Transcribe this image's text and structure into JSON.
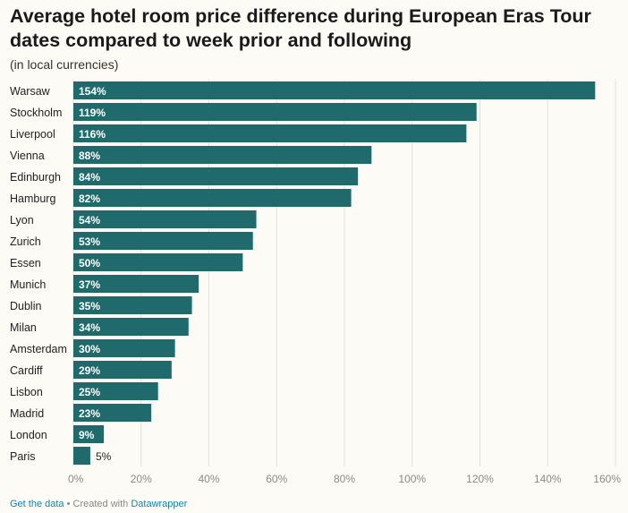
{
  "header": {
    "title": "Average hotel room price difference during European Eras Tour dates compared to week prior and following",
    "subtitle": "(in local currencies)"
  },
  "footer": {
    "get_data_label": "Get the data",
    "separator": " • Created with ",
    "tool_label": "Datawrapper"
  },
  "colors": {
    "bar": "#1f6b6b",
    "grid": "#e2e0dc",
    "tick": "#8a8a8a",
    "label_inside": "#ffffff",
    "label_outside": "#222222",
    "background": "#fdfbf6"
  },
  "chart_data": {
    "type": "bar",
    "orientation": "horizontal",
    "title": "Average hotel room price difference during European Eras Tour dates compared to week prior and following",
    "subtitle": "(in local currencies)",
    "xlabel": "",
    "ylabel": "",
    "xlim": [
      0,
      160
    ],
    "xticks": [
      0,
      20,
      40,
      60,
      80,
      100,
      120,
      140,
      160
    ],
    "xtick_labels": [
      "0%",
      "20%",
      "40%",
      "60%",
      "80%",
      "100%",
      "120%",
      "140%",
      "160%"
    ],
    "grid": true,
    "categories": [
      "Warsaw",
      "Stockholm",
      "Liverpool",
      "Vienna",
      "Edinburgh",
      "Hamburg",
      "Lyon",
      "Zurich",
      "Essen",
      "Munich",
      "Dublin",
      "Milan",
      "Amsterdam",
      "Cardiff",
      "Lisbon",
      "Madrid",
      "London",
      "Paris"
    ],
    "values": [
      154,
      119,
      116,
      88,
      84,
      82,
      54,
      53,
      50,
      37,
      35,
      34,
      30,
      29,
      25,
      23,
      9,
      5
    ],
    "value_labels": [
      "154%",
      "119%",
      "116%",
      "88%",
      "84%",
      "82%",
      "54%",
      "53%",
      "50%",
      "37%",
      "35%",
      "34%",
      "30%",
      "29%",
      "25%",
      "23%",
      "9%",
      "5%"
    ]
  }
}
